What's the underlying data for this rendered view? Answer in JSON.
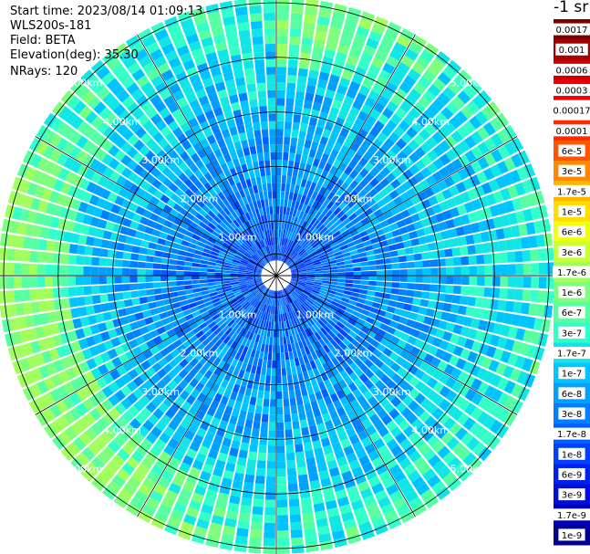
{
  "header": {
    "start_time": "Start time: 2023/08/14 01:09:13",
    "instrument": "WLS200s-181",
    "field": "Field: BETA",
    "elevation": "Elevation(deg): 35.30",
    "nrays": "NRays: 120"
  },
  "colorbar": {
    "unit": "-1 sr",
    "ticks": [
      "0.0017",
      "0.001",
      "0.0006",
      "0.0003",
      "0.00017",
      "0.0001",
      "6e-5",
      "3e-5",
      "1.7e-5",
      "1e-5",
      "6e-6",
      "3e-6",
      "1.7e-6",
      "1e-6",
      "6e-7",
      "3e-7",
      "1.7e-7",
      "1e-7",
      "6e-8",
      "3e-8",
      "1.7e-8",
      "1e-8",
      "6e-9",
      "3e-9",
      "1.7e-9",
      "1e-9"
    ],
    "colors": [
      "#7a0000",
      "#a40000",
      "#cc0000",
      "#f00000",
      "#ffffff",
      "#ff2a00",
      "#ff5500",
      "#ff8800",
      "#ffb400",
      "#ffdd00",
      "#f0ff10",
      "#c8ff36",
      "#a0ff5c",
      "#7dff7d",
      "#58ffa0",
      "#33ffc8",
      "#10e6e6",
      "#00c4ff",
      "#00a0ff",
      "#0080ff",
      "#0060ff",
      "#0040ff",
      "#0020f0",
      "#0010d8",
      "#0000c0",
      "#000090"
    ]
  },
  "chart_data": {
    "type": "heatmap",
    "projection": "polar-ppi",
    "field": "BETA",
    "nrays": 120,
    "range_rings_km": [
      1,
      2,
      3,
      4,
      5
    ],
    "range_ring_labels": [
      "1.00km",
      "2.00km",
      "3.00km",
      "4.00km",
      "5.00km"
    ],
    "max_range_km": 5.1,
    "grid": true,
    "colorbar_position": "right",
    "colormap": [
      "#000090",
      "#0000c0",
      "#0010d8",
      "#0020f0",
      "#0040ff",
      "#0060ff",
      "#0080ff",
      "#00a0ff",
      "#00c4ff",
      "#10e6e6",
      "#33ffc8",
      "#58ffa0",
      "#7dff7d",
      "#a0ff5c",
      "#c8ff36",
      "#f0ff10",
      "#ffdd00",
      "#ffb400",
      "#ff8800",
      "#ff5500"
    ]
  }
}
